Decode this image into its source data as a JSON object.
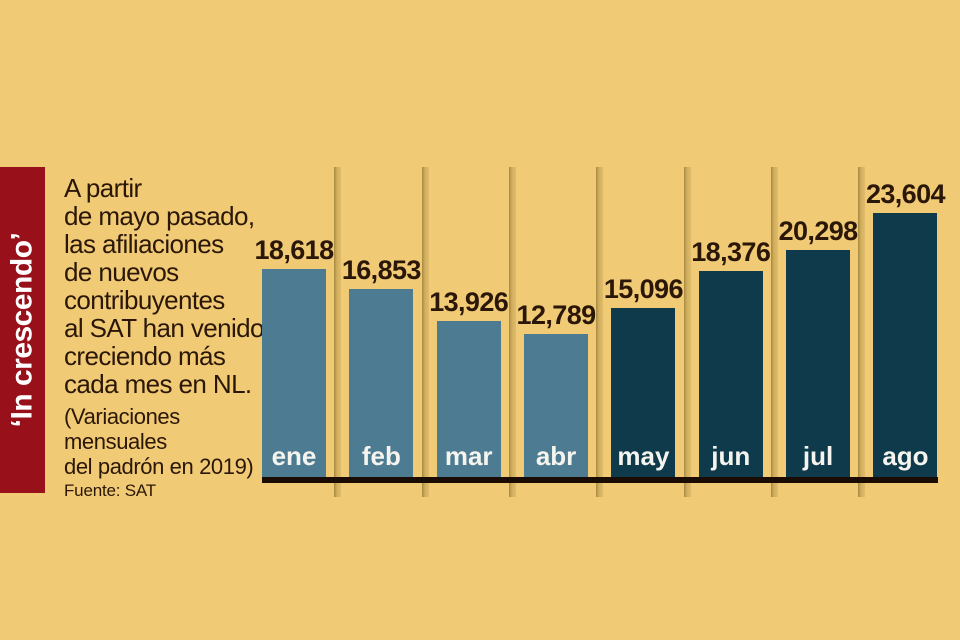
{
  "canvas": {
    "background": "#f0ca74"
  },
  "banner": {
    "label": "‘In crescendo’",
    "background": "#98101a",
    "text_color": "#ffffff"
  },
  "description": {
    "lines": [
      "A partir",
      "de mayo pasado,",
      "las afiliaciones",
      "de nuevos",
      "contribuyentes",
      "al SAT han venido",
      "creciendo más",
      "cada mes en NL."
    ],
    "subtitle_lines": [
      "(Variaciones",
      "mensuales",
      "del padrón en 2019)"
    ],
    "source": "Fuente: SAT",
    "text_color": "#2b1708"
  },
  "chart_data": {
    "type": "bar",
    "title": "‘In crescendo’",
    "categories": [
      "ene",
      "feb",
      "mar",
      "abr",
      "may",
      "jun",
      "jul",
      "ago"
    ],
    "values": [
      18618,
      16853,
      13926,
      12789,
      15096,
      18376,
      20298,
      23604
    ],
    "value_labels": [
      "18,618",
      "16,853",
      "13,926",
      "12,789",
      "15,096",
      "18,376",
      "20,298",
      "23,604"
    ],
    "bar_colors": [
      "#4d7b91",
      "#4d7b91",
      "#4d7b91",
      "#4d7b91",
      "#0e3a4c",
      "#0e3a4c",
      "#0e3a4c",
      "#0e3a4c"
    ],
    "color_groups": {
      "ene_abr": "#4d7b91",
      "may_ago": "#0e3a4c"
    },
    "ylim": [
      0,
      23604
    ],
    "grid": false,
    "axes_hidden": true,
    "legend": false,
    "baseline_color": "#1a0c02",
    "value_label_color": "#2b1708",
    "category_label_color": "#f5f4ee"
  }
}
